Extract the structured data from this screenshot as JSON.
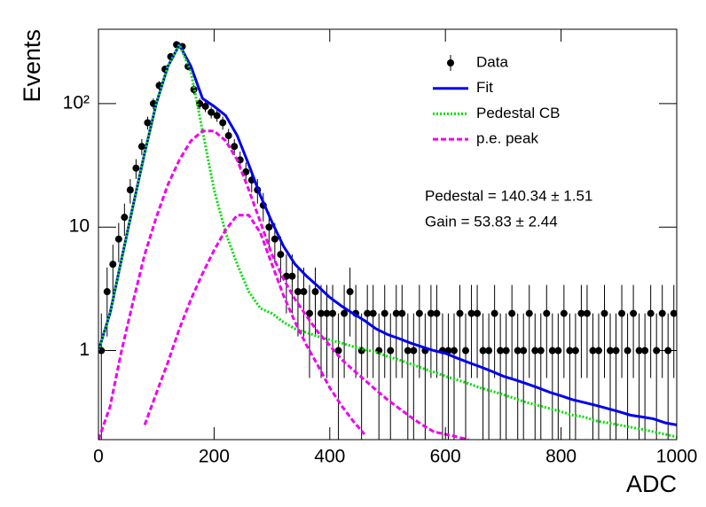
{
  "chart_data": {
    "type": "histogram-fit",
    "x_label": "ADC",
    "y_label": "Events",
    "xlim": [
      0,
      1000
    ],
    "xticks": [
      0,
      200,
      400,
      600,
      800,
      1000
    ],
    "ylim": [
      0.19,
      400
    ],
    "log_y": true,
    "yticks": [
      1,
      10,
      {
        "value": 100,
        "label": "10²"
      }
    ],
    "annotations": [
      "Pedestal = 140.34 ± 1.51",
      "Gain = 53.83 ± 2.44"
    ],
    "legend": "top-right",
    "x": [
      0,
      20,
      40,
      60,
      80,
      100,
      120,
      140,
      160,
      180,
      200,
      220,
      240,
      260,
      280,
      300,
      320,
      340,
      360,
      380,
      400,
      420,
      440,
      460,
      480,
      500,
      520,
      540,
      560,
      580,
      600,
      620,
      640,
      660,
      680,
      700,
      720,
      740,
      760,
      780,
      800,
      820,
      840,
      860,
      880,
      900,
      920,
      940,
      960,
      980,
      1000
    ],
    "series": [
      {
        "name": "Data",
        "style": "points",
        "color": "#000000",
        "x": [
          5,
          15,
          25,
          35,
          45,
          55,
          65,
          75,
          85,
          95,
          105,
          115,
          125,
          135,
          145,
          155,
          165,
          175,
          185,
          195,
          205,
          215,
          225,
          235,
          245,
          255,
          265,
          275,
          285,
          295,
          305,
          315,
          325,
          335,
          345,
          355,
          365,
          375,
          385,
          395,
          405,
          415,
          425,
          435,
          445,
          455,
          465,
          475,
          485,
          495,
          505,
          515,
          525,
          535,
          545,
          555,
          565,
          575,
          585,
          595,
          605,
          615,
          625,
          635,
          645,
          655,
          665,
          675,
          685,
          695,
          705,
          715,
          725,
          735,
          745,
          755,
          765,
          775,
          785,
          795,
          805,
          815,
          825,
          835,
          845,
          855,
          865,
          875,
          885,
          895,
          905,
          915,
          925,
          935,
          945,
          955,
          965,
          975,
          985,
          995
        ],
        "values": [
          1,
          3,
          5,
          8,
          12,
          20,
          30,
          45,
          70,
          100,
          140,
          190,
          240,
          300,
          290,
          200,
          130,
          100,
          95,
          85,
          80,
          70,
          55,
          45,
          35,
          28,
          24,
          20,
          15,
          10,
          8,
          6,
          4,
          4,
          3,
          3,
          2,
          3,
          2,
          2,
          2,
          1,
          2,
          3,
          2,
          1,
          2,
          2,
          1,
          2,
          1,
          2,
          2,
          1,
          1,
          2,
          1,
          2,
          2,
          1,
          1,
          1,
          2,
          1,
          2,
          2,
          1,
          1,
          2,
          1,
          1,
          2,
          1,
          1,
          2,
          1,
          1,
          2,
          1,
          1,
          2,
          1,
          1,
          2,
          2,
          1,
          1,
          2,
          1,
          1,
          2,
          1,
          2,
          1,
          1,
          2,
          1,
          2,
          1,
          2
        ],
        "errors": [
          1,
          1.7,
          2.2,
          2.8,
          3.5,
          4.5,
          5.5,
          6.7,
          8.4,
          10,
          11.8,
          13.8,
          15.5,
          17.3,
          17,
          14.1,
          11.4,
          10,
          9.7,
          9.2,
          8.9,
          8.4,
          7.4,
          6.7,
          5.9,
          5.3,
          4.9,
          4.5,
          3.9,
          3.2,
          2.8,
          2.4,
          2,
          2,
          1.7,
          1.7,
          1.4,
          1.7,
          1.4,
          1.4,
          1.4,
          1,
          1.4,
          1.7,
          1.4,
          1,
          1.4,
          1.4,
          1,
          1.4,
          1,
          1.4,
          1.4,
          1,
          1,
          1.4,
          1,
          1.4,
          1.4,
          1,
          1,
          1,
          1.4,
          1,
          1.4,
          1.4,
          1,
          1,
          1.4,
          1,
          1,
          1.4,
          1,
          1,
          1.4,
          1,
          1,
          1.4,
          1,
          1,
          1.4,
          1,
          1,
          1.4,
          1.4,
          1,
          1,
          1.4,
          1,
          1,
          1.4,
          1,
          1.4,
          1,
          1,
          1.4,
          1,
          1.4,
          1,
          1.4
        ]
      },
      {
        "name": "Fit",
        "style": "solid",
        "color": "#0000ee",
        "values": [
          [
            1,
            2,
            5.5,
            15,
            40,
            100,
            200,
            300,
            200,
            110,
            95,
            80,
            55,
            32,
            18,
            11,
            7,
            5,
            4,
            3.3,
            2.7,
            2.3,
            2.0,
            1.75,
            1.5,
            1.35,
            1.25,
            1.15,
            1.07,
            1.0,
            0.95,
            0.87,
            0.8,
            0.74,
            0.68,
            0.62,
            0.58,
            0.54,
            0.5,
            0.46,
            0.43,
            0.4,
            0.38,
            0.36,
            0.34,
            0.32,
            0.3,
            0.29,
            0.28,
            0.26,
            0.25
          ]
        ]
      },
      {
        "name": "Pedestal CB",
        "style": "dotted",
        "color": "#00dd00",
        "values": [
          [
            1,
            2,
            5.5,
            15,
            40,
            100,
            200,
            300,
            180,
            60,
            20,
            9,
            5,
            3,
            2.2,
            2,
            1.7,
            1.5,
            1.4,
            1.3,
            1.22,
            1.15,
            1.08,
            1.02,
            0.97,
            0.9,
            0.84,
            0.78,
            0.72,
            0.67,
            0.62,
            0.58,
            0.54,
            0.5,
            0.47,
            0.44,
            0.41,
            0.38,
            0.36,
            0.34,
            0.32,
            0.3,
            0.29,
            0.27,
            0.26,
            0.25,
            0.24,
            0.23,
            0.22,
            0.21,
            0.2
          ]
        ]
      },
      {
        "name": "p.e. peak",
        "style": "dashed",
        "color": "#ee00ee",
        "values": [
          [
            0.19,
            0.35,
            1,
            2.5,
            6,
            12,
            22,
            35,
            50,
            60,
            60,
            50,
            35,
            20,
            11,
            6,
            3.8,
            2.6,
            1.9,
            1.4,
            1.1,
            0.85,
            0.7,
            0.58,
            0.48,
            0.4,
            0.34,
            0.29,
            0.25,
            0.22,
            0.21,
            0.2,
            0.19,
            null,
            null,
            null,
            null,
            null,
            null,
            null,
            null,
            null,
            null,
            null,
            null,
            null,
            null,
            null,
            null,
            null,
            null
          ],
          [
            null,
            null,
            null,
            null,
            0.25,
            0.45,
            0.8,
            1.5,
            2.6,
            4.2,
            6.5,
            9.5,
            12.5,
            12.5,
            9,
            5,
            2.8,
            1.7,
            1.1,
            0.75,
            0.5,
            0.36,
            0.27,
            0.21,
            null,
            null,
            null,
            null,
            null,
            null,
            null,
            null,
            null,
            null,
            null,
            null,
            null,
            null,
            null,
            null,
            null,
            null,
            null,
            null,
            null,
            null,
            null,
            null,
            null,
            null,
            null
          ]
        ]
      }
    ]
  }
}
